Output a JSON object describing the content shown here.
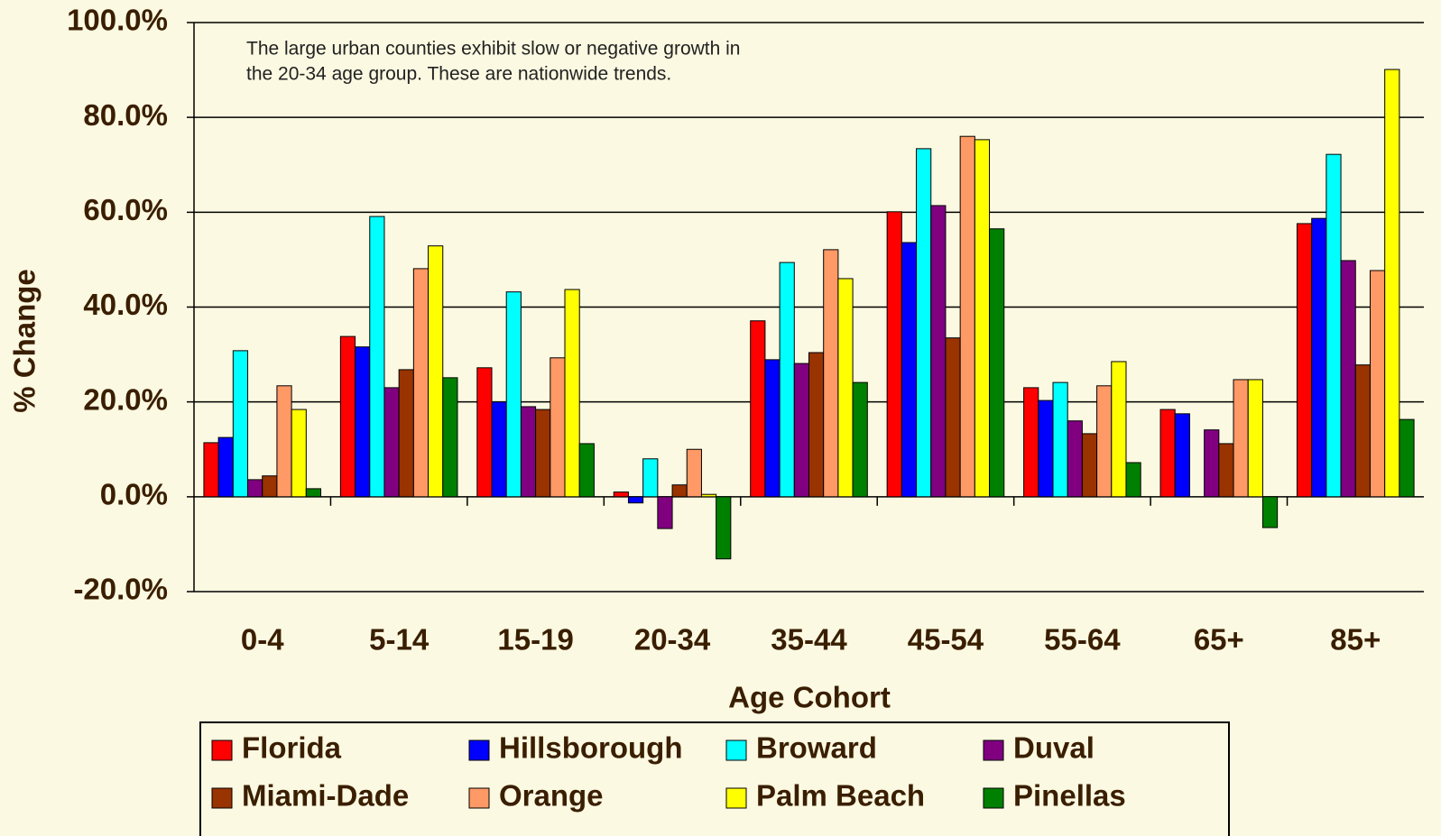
{
  "chart_data": {
    "type": "bar",
    "annotation": [
      "The large urban counties exhibit slow or negative growth in",
      "the 20-34  age group.  These are nationwide trends."
    ],
    "x_label": "Age Cohort",
    "y_label": "% Change",
    "categories": [
      "0-4",
      "5-14",
      "15-19",
      "20-34",
      "35-44",
      "45-54",
      "55-64",
      "65+",
      "85+"
    ],
    "series": [
      {
        "name": "Florida",
        "color": "#ff0000",
        "values": [
          11.4,
          33.8,
          27.2,
          1.0,
          37.1,
          60.1,
          23.0,
          18.4,
          57.6
        ]
      },
      {
        "name": "Hillsborough",
        "color": "#0000ff",
        "values": [
          12.5,
          31.6,
          20.0,
          -1.3,
          28.9,
          53.6,
          20.3,
          17.5,
          58.7
        ]
      },
      {
        "name": "Broward",
        "color": "#00ffff",
        "values": [
          30.8,
          59.1,
          43.2,
          8.0,
          49.4,
          73.4,
          24.1,
          null,
          72.2
        ]
      },
      {
        "name": "Duval",
        "color": "#800080",
        "values": [
          3.6,
          23.0,
          19.0,
          -6.7,
          28.1,
          61.4,
          16.0,
          14.1,
          49.8
        ]
      },
      {
        "name": "Miami-Dade",
        "color": "#993300",
        "values": [
          4.4,
          26.8,
          18.4,
          2.5,
          30.4,
          33.5,
          13.3,
          11.2,
          27.8
        ]
      },
      {
        "name": "Orange",
        "color": "#ff9966",
        "values": [
          23.4,
          48.1,
          29.3,
          10.0,
          52.1,
          76.0,
          23.4,
          24.7,
          47.7
        ]
      },
      {
        "name": "Palm Beach",
        "color": "#ffff00",
        "values": [
          18.4,
          52.9,
          43.7,
          0.5,
          46.0,
          75.3,
          28.5,
          24.7,
          90.1
        ]
      },
      {
        "name": "Pinellas",
        "color": "#008000",
        "values": [
          1.7,
          25.1,
          11.2,
          -13.1,
          24.1,
          56.5,
          7.2,
          -6.5,
          16.3
        ]
      }
    ],
    "ylim": [
      -20,
      100
    ],
    "yticks": [
      {
        "value": -20,
        "label": "-20.0%"
      },
      {
        "value": 0,
        "label": "0.0%"
      },
      {
        "value": 20,
        "label": "20.0%"
      },
      {
        "value": 40,
        "label": "40.0%"
      },
      {
        "value": 60,
        "label": "60.0%"
      },
      {
        "value": 80,
        "label": "80.0%"
      },
      {
        "value": 100,
        "label": "100.0%"
      }
    ],
    "grid": true
  }
}
